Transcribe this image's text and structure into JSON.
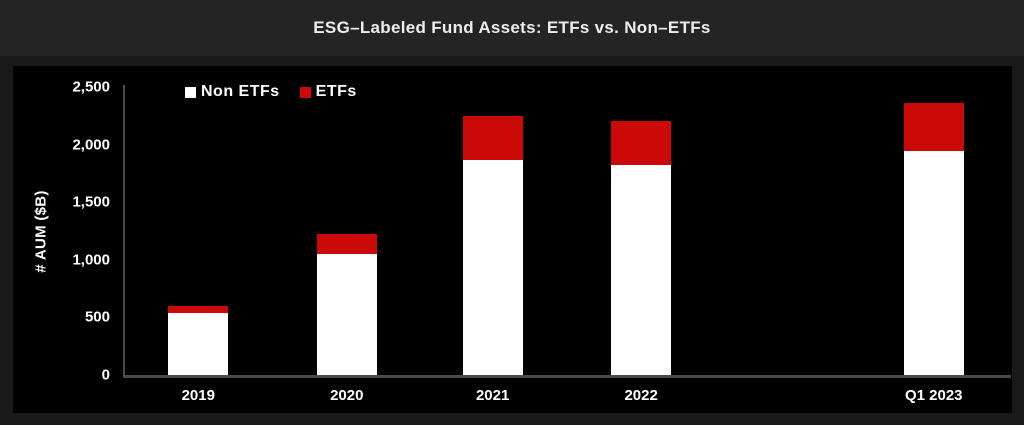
{
  "header": {
    "title": "ESG–Labeled Fund Assets: ETFs vs. Non–ETFs"
  },
  "chart_data": {
    "type": "bar",
    "stacked": true,
    "title": "ESG–Labeled Fund Assets: ETFs vs. Non–ETFs",
    "categories": [
      "2019",
      "2020",
      "2021",
      "2022",
      "Q1 2023"
    ],
    "series": [
      {
        "name": "Non ETFs",
        "color": "#ffffff",
        "values": [
          540,
          1050,
          1870,
          1820,
          1945
        ]
      },
      {
        "name": "ETFs",
        "color": "#cc0909",
        "values": [
          60,
          175,
          375,
          385,
          420
        ]
      }
    ],
    "xlabel": "",
    "ylabel": "# AUM ($B)",
    "ylim": [
      0,
      2500
    ],
    "yticks": [
      0,
      500,
      1000,
      1500,
      2000,
      2500
    ],
    "ytick_labels": [
      "0",
      "500",
      "1,000",
      "1,500",
      "2,000",
      "2,500"
    ],
    "grid": false,
    "legend_position": "top-left-inside",
    "bar_left_pct": [
      5.0,
      21.8,
      38.3,
      55.1,
      88.2
    ],
    "bar_width_pct": 6.8,
    "background": "#000000",
    "page_background": "#191919",
    "header_background": "#242424",
    "axis_color": "#4a4a4a",
    "text_color": "#ffffff"
  }
}
